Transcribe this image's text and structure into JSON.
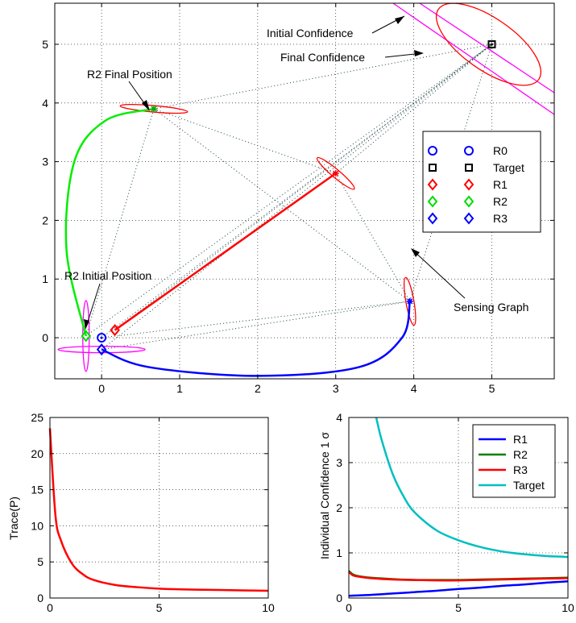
{
  "chart_data": [
    {
      "type": "scatter",
      "title": "",
      "xlabel": "",
      "ylabel": "",
      "xlim": [
        -0.6,
        5.8
      ],
      "ylim": [
        -0.7,
        5.7
      ],
      "xticks": [
        0,
        1,
        2,
        3,
        4,
        5
      ],
      "yticks": [
        0,
        1,
        2,
        3,
        4,
        5
      ],
      "grid": true,
      "legend_position": "right",
      "legend": [
        {
          "name": "R0",
          "marker": "circle",
          "color": "#0000ff"
        },
        {
          "name": "Target",
          "marker": "square",
          "color": "#000000"
        },
        {
          "name": "R1",
          "marker": "diamond",
          "color": "#ff0000"
        },
        {
          "name": "R2",
          "marker": "diamond",
          "color": "#00dd00"
        },
        {
          "name": "R3",
          "marker": "diamond",
          "color": "#0000ff"
        }
      ],
      "points": [
        {
          "name": "R0",
          "x": 0.0,
          "y": 0.0
        },
        {
          "name": "Target",
          "x": 5.0,
          "y": 5.0
        },
        {
          "name": "R1 start",
          "x": 0.17,
          "y": 0.13
        },
        {
          "name": "R1 end",
          "x": 3.0,
          "y": 2.8
        },
        {
          "name": "R2 start",
          "x": -0.2,
          "y": 0.03
        },
        {
          "name": "R2 end",
          "x": 0.67,
          "y": 3.9
        },
        {
          "name": "R3 start",
          "x": 0.0,
          "y": -0.2
        },
        {
          "name": "R3 end",
          "x": 3.95,
          "y": 0.62
        }
      ],
      "paths": [
        {
          "name": "R1",
          "color": "#ff0000",
          "x": [
            0.17,
            3.0
          ],
          "y": [
            0.13,
            2.8
          ]
        },
        {
          "name": "R2",
          "color": "#00ee00",
          "x": [
            -0.2,
            -0.45,
            -0.35,
            0.05,
            0.67
          ],
          "y": [
            0.03,
            1.5,
            3.0,
            3.7,
            3.9
          ]
        },
        {
          "name": "R3",
          "color": "#0000ff",
          "x": [
            0.0,
            0.6,
            2.0,
            3.3,
            3.85,
            3.95
          ],
          "y": [
            -0.2,
            -0.5,
            -0.65,
            -0.5,
            0.0,
            0.62
          ]
        }
      ],
      "sensing_graph_edges": [
        [
          [
            0.0,
            0.0
          ],
          [
            5.0,
            5.0
          ]
        ],
        [
          [
            0.17,
            0.13
          ],
          [
            5.0,
            5.0
          ]
        ],
        [
          [
            -0.2,
            0.03
          ],
          [
            5.0,
            5.0
          ]
        ],
        [
          [
            0.0,
            -0.2
          ],
          [
            5.0,
            5.0
          ]
        ],
        [
          [
            0.0,
            0.0
          ],
          [
            3.95,
            0.62
          ]
        ],
        [
          [
            0.67,
            3.9
          ],
          [
            5.0,
            5.0
          ]
        ],
        [
          [
            0.67,
            3.9
          ],
          [
            3.0,
            2.8
          ]
        ],
        [
          [
            0.67,
            3.9
          ],
          [
            3.95,
            0.62
          ]
        ],
        [
          [
            3.0,
            2.8
          ],
          [
            5.0,
            5.0
          ]
        ],
        [
          [
            3.0,
            2.8
          ],
          [
            3.95,
            0.62
          ]
        ],
        [
          [
            3.95,
            0.62
          ],
          [
            5.0,
            5.0
          ]
        ],
        [
          [
            -0.2,
            0.03
          ],
          [
            0.67,
            3.9
          ]
        ],
        [
          [
            0.0,
            -0.2
          ],
          [
            3.95,
            0.62
          ]
        ]
      ],
      "annotations": [
        "Initial Confidence",
        "Final Confidence",
        "R2 Final Position",
        "R2 Initial Position",
        "Sensing Graph"
      ]
    },
    {
      "type": "line",
      "title": "",
      "xlabel": "",
      "ylabel": "Trace(P)",
      "xlim": [
        0,
        10
      ],
      "ylim": [
        0,
        25
      ],
      "xticks": [
        0,
        5,
        10
      ],
      "yticks": [
        0,
        5,
        10,
        15,
        20,
        25
      ],
      "grid": true,
      "series": [
        {
          "color": "#ff0000",
          "x": [
            0,
            0.25,
            0.5,
            1,
            1.5,
            2,
            3,
            4,
            5,
            6,
            7,
            8,
            9,
            10
          ],
          "y": [
            23.5,
            11.5,
            8.0,
            4.8,
            3.3,
            2.5,
            1.8,
            1.5,
            1.3,
            1.2,
            1.15,
            1.1,
            1.05,
            1.0
          ]
        }
      ]
    },
    {
      "type": "line",
      "title": "",
      "xlabel": "",
      "ylabel": "Individual Confidence 1 σ",
      "xlim": [
        0,
        10
      ],
      "ylim": [
        0,
        4
      ],
      "xticks": [
        0,
        5,
        10
      ],
      "yticks": [
        0,
        1,
        2,
        3,
        4
      ],
      "grid": true,
      "legend_position": "top-right",
      "series": [
        {
          "name": "R1",
          "color": "#0000ff",
          "x": [
            0,
            1,
            2,
            3,
            4,
            5,
            6,
            7,
            8,
            9,
            10
          ],
          "y": [
            0.05,
            0.07,
            0.1,
            0.13,
            0.16,
            0.2,
            0.23,
            0.27,
            0.3,
            0.34,
            0.37
          ]
        },
        {
          "name": "R2",
          "color": "#008000",
          "x": [
            0,
            0.2,
            0.5,
            1,
            2,
            3,
            4,
            5,
            6,
            7,
            8,
            9,
            10
          ],
          "y": [
            0.6,
            0.52,
            0.48,
            0.45,
            0.42,
            0.4,
            0.4,
            0.4,
            0.41,
            0.42,
            0.43,
            0.44,
            0.45
          ]
        },
        {
          "name": "R3",
          "color": "#ff0000",
          "x": [
            0,
            0.2,
            0.5,
            1,
            2,
            3,
            4,
            5,
            6,
            7,
            8,
            9,
            10
          ],
          "y": [
            0.58,
            0.5,
            0.47,
            0.44,
            0.41,
            0.4,
            0.39,
            0.39,
            0.4,
            0.41,
            0.42,
            0.43,
            0.44
          ]
        },
        {
          "name": "Target",
          "color": "#00bfbf",
          "x": [
            1.25,
            1.5,
            2,
            2.5,
            3,
            4,
            5,
            6,
            7,
            8,
            9,
            10
          ],
          "y": [
            4.0,
            3.5,
            2.75,
            2.25,
            1.9,
            1.5,
            1.28,
            1.13,
            1.03,
            0.97,
            0.93,
            0.91
          ]
        }
      ]
    }
  ]
}
